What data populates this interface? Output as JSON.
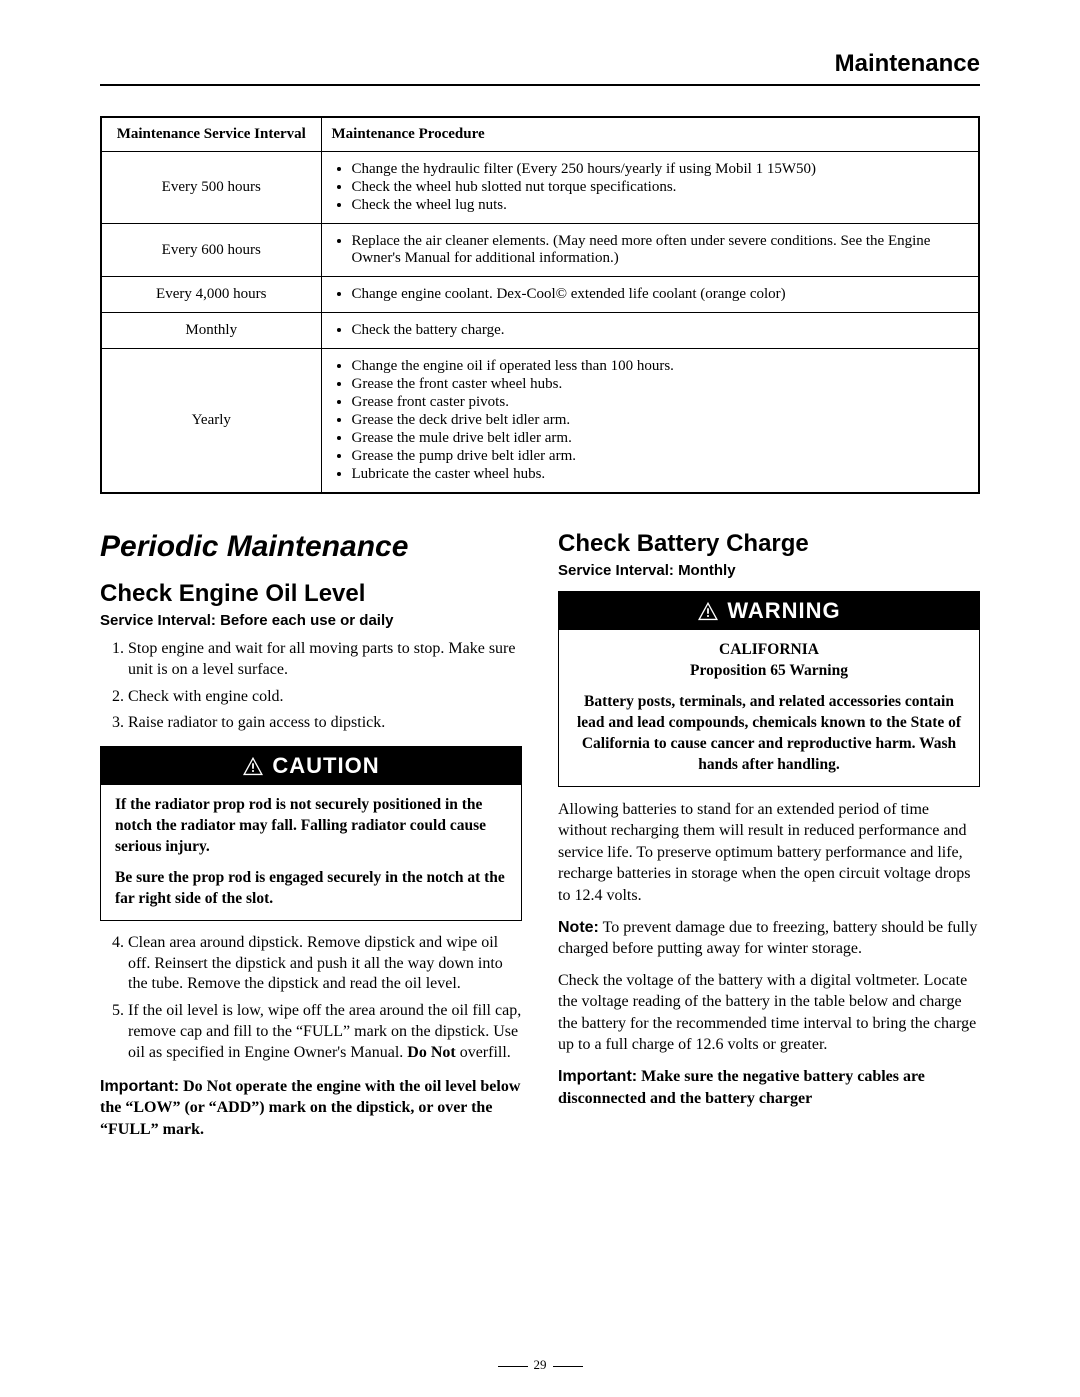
{
  "header": {
    "title": "Maintenance"
  },
  "table": {
    "headers": {
      "interval": "Maintenance Service Interval",
      "procedure": "Maintenance Procedure"
    },
    "rows": [
      {
        "interval": "Every 500 hours",
        "items": [
          "Change the hydraulic filter (Every 250 hours/yearly if using Mobil 1 15W50)",
          "Check the wheel hub slotted nut torque specifications.",
          "Check the wheel lug nuts."
        ]
      },
      {
        "interval": "Every 600 hours",
        "items": [
          "Replace the air cleaner elements. (May need more often under severe conditions. See the Engine Owner's Manual for additional information.)"
        ]
      },
      {
        "interval": "Every 4,000 hours",
        "items": [
          "Change engine coolant. Dex-Cool© extended life coolant (orange color)"
        ]
      },
      {
        "interval": "Monthly",
        "items": [
          "Check the battery charge."
        ]
      },
      {
        "interval": "Yearly",
        "items": [
          "Change the engine oil if operated less than 100 hours.",
          "Grease the front caster wheel hubs.",
          "Grease front caster pivots.",
          "Grease the deck drive belt idler arm.",
          "Grease the mule drive belt idler arm.",
          "Grease the pump drive belt idler arm.",
          "Lubricate the caster wheel hubs."
        ]
      }
    ]
  },
  "left": {
    "section_title": "Periodic Maintenance",
    "sub_title": "Check Engine Oil Level",
    "service_interval": "Service Interval: Before each use or daily",
    "steps_a": [
      "Stop engine and wait for all moving parts to stop. Make sure unit is on a level surface.",
      "Check with engine cold.",
      "Raise radiator to gain access to dipstick."
    ],
    "caution": {
      "label": "CAUTION",
      "p1": "If the radiator prop rod is not securely positioned in the notch the radiator may fall. Falling radiator could cause serious injury.",
      "p2": "Be sure the prop rod is engaged securely in the notch at the far right side of the slot."
    },
    "steps_b": [
      "Clean area around dipstick. Remove dipstick and wipe oil off. Reinsert the dipstick and push it all the way down into the tube. Remove the dipstick and read the oil level.",
      "If the oil level is low, wipe off the area around the oil fill cap, remove cap and fill to the “FULL” mark on the dipstick. Use oil as specified in Engine Owner's Manual. Do Not overfill."
    ],
    "important_label": "Important:",
    "important_text": "Do Not operate the engine with the oil level below the “LOW” (or “ADD”) mark on the dipstick, or over the “FULL” mark."
  },
  "right": {
    "sub_title": "Check Battery Charge",
    "service_interval": "Service Interval: Monthly",
    "warning": {
      "label": "WARNING",
      "cal_line1": "CALIFORNIA",
      "cal_line2": "Proposition 65 Warning",
      "body": "Battery posts, terminals, and related accessories contain lead and lead compounds, chemicals known to the State of California to cause cancer and reproductive harm. Wash hands after handling."
    },
    "p1": "Allowing batteries to stand for an extended period of time without recharging them will result in reduced performance and service life. To preserve optimum battery performance and life, recharge batteries in storage when the open circuit voltage drops to 12.4 volts.",
    "note_label": "Note:",
    "note_text": "To prevent damage due to freezing, battery should be fully charged before putting away for winter storage.",
    "p2": "Check the voltage of the battery with a digital voltmeter. Locate the voltage reading of the battery in the table below and charge the battery for the recommended time interval to bring the charge up to a full charge of 12.6 volts or greater.",
    "important_label": "Important:",
    "important_text": "Make sure the negative battery cables are disconnected and the battery charger"
  },
  "page_number": "29"
}
